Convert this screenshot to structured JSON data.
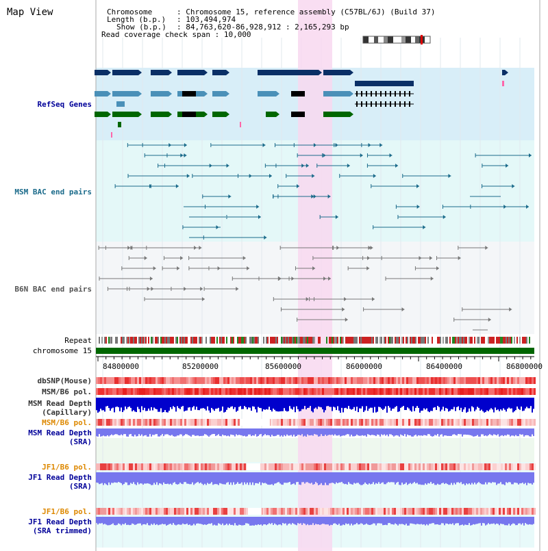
{
  "title": "Map View",
  "info": {
    "chromosome_key": "Chromosome",
    "chromosome_val": ": Chromosome 15, reference assembly (C57BL/6J) (Build 37)",
    "length_key": "Length (b.p.)",
    "length_val": ": 103,494,974",
    "show_key": "Show (b.p.)",
    "show_val": ": 84,763,620-86,928,912 : 2,165,293 bp",
    "span_key": "Read coverage check span",
    "span_val": ": 10,000"
  },
  "tracks": {
    "refseq": "RefSeq Genes",
    "msm_bac": "MSM BAC end pairs",
    "b6n_bac": "B6N BAC end pairs",
    "repeat": "Repeat",
    "chromosome": "chromosome 15",
    "dbsnp": "dbSNP(Mouse)",
    "msm_b6_pol_1": "MSM/B6 pol.",
    "msm_read_depth_cap_1": "MSM Read Depth",
    "msm_read_depth_cap_2": "(Capillary)",
    "msm_b6_pol_2": "MSM/B6 pol.",
    "msm_read_depth_sra_1": "MSM Read Depth",
    "msm_read_depth_sra_2": "(SRA)",
    "jf1_b6_pol_1": "JF1/B6 pol.",
    "jf1_read_depth_sra_1": "JF1 Read Depth",
    "jf1_read_depth_sra_2": "(SRA)",
    "jf1_b6_pol_2": "JF1/B6 pol.",
    "jf1_read_depth_trim_1": "JF1 Read Depth",
    "jf1_read_depth_trim_2": "(SRA trimmed)"
  },
  "axis": {
    "ticks": [
      "84800000",
      "85200000",
      "85600000",
      "86000000",
      "86400000",
      "86800000"
    ]
  },
  "colors": {
    "refseq_bg": "#d8eef8",
    "bac_bg": "#e4f8f8",
    "highlight": "#f8d8f0",
    "chromosome": "#006600",
    "gene_dark": "#0a2f66",
    "gene_mid": "#4a90b8",
    "gene_green": "#006600",
    "msm_line": "#1a6a8a",
    "b6n_line": "#777777",
    "depth_blue": "#0000cc",
    "depth_light": "#7777ee",
    "label_blue": "#000099",
    "label_orange": "#dd8800"
  }
}
